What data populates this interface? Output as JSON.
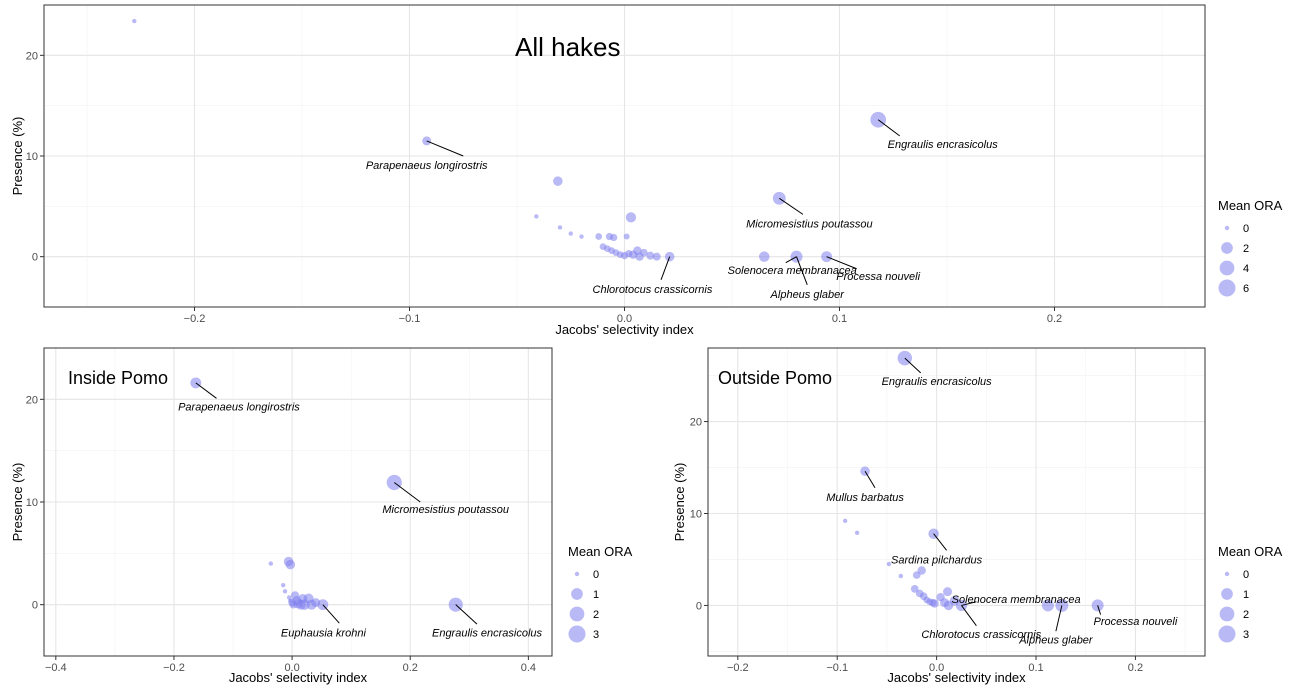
{
  "chart_data": [
    {
      "type": "scatter",
      "title": "All hakes",
      "xlabel": "Jacobs' selectivity index",
      "ylabel": "Presence (%)",
      "xlim": [
        -0.27,
        0.27
      ],
      "ylim": [
        -5,
        25
      ],
      "x_ticks": [
        -0.2,
        -0.1,
        0.0,
        0.1,
        0.2
      ],
      "x_tick_labels": [
        "−0.2",
        "−0.1",
        "0.0",
        "0.1",
        "0.2"
      ],
      "y_ticks": [
        0,
        10,
        20
      ],
      "y_tick_labels": [
        "0",
        "10",
        "20"
      ],
      "grid": true,
      "point_color": "#8080ee",
      "legend": {
        "title": "Mean ORA",
        "placement": "right",
        "values": [
          0,
          2,
          4,
          6
        ],
        "labels": [
          "0",
          "2",
          "4",
          "6"
        ],
        "max": 6
      },
      "points": [
        {
          "x": -0.228,
          "y": 23.4,
          "ora": 0
        },
        {
          "x": -0.092,
          "y": 11.5,
          "ora": 0.8
        },
        {
          "x": -0.031,
          "y": 7.5,
          "ora": 1.0
        },
        {
          "x": 0.003,
          "y": 3.9,
          "ora": 1.3
        },
        {
          "x": 0.118,
          "y": 13.6,
          "ora": 4.8
        },
        {
          "x": 0.072,
          "y": 5.8,
          "ora": 2.7
        },
        {
          "x": -0.041,
          "y": 4.0,
          "ora": 0
        },
        {
          "x": -0.03,
          "y": 2.9,
          "ora": 0
        },
        {
          "x": -0.025,
          "y": 2.3,
          "ora": 0
        },
        {
          "x": -0.02,
          "y": 2.0,
          "ora": 0
        },
        {
          "x": -0.012,
          "y": 2.0,
          "ora": 0.2
        },
        {
          "x": -0.007,
          "y": 2.0,
          "ora": 0.3
        },
        {
          "x": -0.005,
          "y": 1.9,
          "ora": 0.3
        },
        {
          "x": 0.001,
          "y": 2.0,
          "ora": 0.1
        },
        {
          "x": -0.01,
          "y": 1.0,
          "ora": 0.2
        },
        {
          "x": -0.008,
          "y": 0.8,
          "ora": 0.2
        },
        {
          "x": -0.006,
          "y": 0.6,
          "ora": 0.2
        },
        {
          "x": -0.004,
          "y": 0.4,
          "ora": 0.2
        },
        {
          "x": -0.002,
          "y": 0.2,
          "ora": 0.2
        },
        {
          "x": 0.0,
          "y": 0.1,
          "ora": 0.3
        },
        {
          "x": 0.002,
          "y": 0.3,
          "ora": 0.3
        },
        {
          "x": 0.004,
          "y": 0.2,
          "ora": 0.6
        },
        {
          "x": 0.006,
          "y": 0.6,
          "ora": 0.6
        },
        {
          "x": 0.007,
          "y": 0.0,
          "ora": 0.6
        },
        {
          "x": 0.009,
          "y": 0.4,
          "ora": 0.4
        },
        {
          "x": 0.012,
          "y": 0.1,
          "ora": 0.5
        },
        {
          "x": 0.015,
          "y": 0.0,
          "ora": 0.5
        },
        {
          "x": 0.021,
          "y": 0.0,
          "ora": 1.0
        },
        {
          "x": 0.065,
          "y": 0.0,
          "ora": 1.4
        },
        {
          "x": 0.08,
          "y": 0.0,
          "ora": 2.2
        },
        {
          "x": 0.094,
          "y": 0.0,
          "ora": 1.6
        }
      ],
      "annotations": [
        {
          "label": "Parapenaeus longirostris",
          "x": -0.092,
          "y": 11.5,
          "tx": -0.092,
          "ty": 9.1,
          "lx": -0.075,
          "ly": 10.0
        },
        {
          "label": "Engraulis encrasicolus",
          "x": 0.118,
          "y": 13.6,
          "tx": 0.148,
          "ty": 11.2,
          "lx": 0.128,
          "ly": 12.0
        },
        {
          "label": "Micromesistius poutassou",
          "x": 0.072,
          "y": 5.8,
          "tx": 0.086,
          "ty": 3.3,
          "lx": 0.083,
          "ly": 4.2
        },
        {
          "label": "Solenocera membranacea",
          "x": 0.08,
          "y": 0.0,
          "tx": 0.078,
          "ty": -1.3,
          "lx": 0.075,
          "ly": -0.6
        },
        {
          "label": "Processa nouveli",
          "x": 0.094,
          "y": 0.0,
          "tx": 0.118,
          "ty": -1.9,
          "lx": 0.108,
          "ly": -1.2
        },
        {
          "label": "Alpheus glaber",
          "x": 0.08,
          "y": 0.0,
          "tx": 0.085,
          "ty": -3.7,
          "lx": 0.085,
          "ly": -2.8
        },
        {
          "label": "Chlorotocus crassicornis",
          "x": 0.021,
          "y": 0.0,
          "tx": 0.013,
          "ty": -3.2,
          "lx": 0.017,
          "ly": -2.3
        }
      ]
    },
    {
      "type": "scatter",
      "title": "Inside Pomo",
      "xlabel": "Jacobs' selectivity index",
      "ylabel": "Presence (%)",
      "xlim": [
        -0.42,
        0.44
      ],
      "ylim": [
        -5,
        25
      ],
      "x_ticks": [
        -0.4,
        -0.2,
        0.0,
        0.2,
        0.4
      ],
      "x_tick_labels": [
        "−0.4",
        "−0.2",
        "0.0",
        "0.2",
        "0.4"
      ],
      "y_ticks": [
        0,
        10,
        20
      ],
      "y_tick_labels": [
        "0",
        "10",
        "20"
      ],
      "grid": true,
      "point_color": "#8080ee",
      "legend": {
        "title": "Mean ORA",
        "placement": "right",
        "values": [
          0,
          1,
          2,
          3
        ],
        "labels": [
          "0",
          "1",
          "2",
          "3"
        ],
        "max": 3
      },
      "points": [
        {
          "x": -0.163,
          "y": 21.6,
          "ora": 0.8
        },
        {
          "x": 0.173,
          "y": 11.9,
          "ora": 2.2
        },
        {
          "x": 0.277,
          "y": 0.0,
          "ora": 1.8
        },
        {
          "x": 0.052,
          "y": 0.0,
          "ora": 0.8
        },
        {
          "x": -0.036,
          "y": 4.0,
          "ora": 0
        },
        {
          "x": -0.006,
          "y": 4.2,
          "ora": 0.5
        },
        {
          "x": -0.003,
          "y": 3.9,
          "ora": 0.5
        },
        {
          "x": -0.015,
          "y": 1.9,
          "ora": 0
        },
        {
          "x": -0.012,
          "y": 1.3,
          "ora": 0
        },
        {
          "x": -0.005,
          "y": 0.7,
          "ora": 0
        },
        {
          "x": -0.003,
          "y": 0.4,
          "ora": 0
        },
        {
          "x": 0.0,
          "y": 0.2,
          "ora": 0.2
        },
        {
          "x": 0.002,
          "y": 0.0,
          "ora": 0.2
        },
        {
          "x": 0.005,
          "y": 0.9,
          "ora": 0.3
        },
        {
          "x": 0.008,
          "y": 0.4,
          "ora": 0.4
        },
        {
          "x": 0.01,
          "y": 0.1,
          "ora": 0.5
        },
        {
          "x": 0.015,
          "y": 0.0,
          "ora": 0.6
        },
        {
          "x": 0.018,
          "y": 0.6,
          "ora": 0.4
        },
        {
          "x": 0.021,
          "y": 0.0,
          "ora": 0.7
        },
        {
          "x": 0.028,
          "y": 0.6,
          "ora": 0.6
        },
        {
          "x": 0.033,
          "y": 0.0,
          "ora": 0.6
        },
        {
          "x": 0.04,
          "y": 0.2,
          "ora": 0.4
        }
      ],
      "annotations": [
        {
          "label": "Parapenaeus longirostris",
          "x": -0.163,
          "y": 21.6,
          "tx": -0.09,
          "ty": 19.3,
          "lx": -0.128,
          "ly": 20.1
        },
        {
          "label": "Micromesistius poutassou",
          "x": 0.173,
          "y": 11.9,
          "tx": 0.26,
          "ty": 9.3,
          "lx": 0.217,
          "ly": 10.0
        },
        {
          "label": "Engraulis encrasicolus",
          "x": 0.277,
          "y": 0.0,
          "tx": 0.33,
          "ty": -2.7,
          "lx": 0.313,
          "ly": -1.9
        },
        {
          "label": "Euphausia krohni",
          "x": 0.052,
          "y": 0.0,
          "tx": 0.053,
          "ty": -2.7,
          "lx": 0.08,
          "ly": -1.8
        }
      ]
    },
    {
      "type": "scatter",
      "title": "Outside Pomo",
      "xlabel": "Jacobs' selectivity index",
      "ylabel": "Presence (%)",
      "xlim": [
        -0.23,
        0.27
      ],
      "ylim": [
        -5.5,
        28
      ],
      "x_ticks": [
        -0.2,
        -0.1,
        0.0,
        0.1,
        0.2
      ],
      "x_tick_labels": [
        "−0.2",
        "−0.1",
        "0.0",
        "0.1",
        "0.2"
      ],
      "y_ticks": [
        0,
        10,
        20
      ],
      "y_tick_labels": [
        "0",
        "10",
        "20"
      ],
      "grid": true,
      "point_color": "#8080ee",
      "legend": {
        "title": "Mean ORA",
        "placement": "right",
        "values": [
          0,
          1,
          2,
          3
        ],
        "labels": [
          "0",
          "1",
          "2",
          "3"
        ],
        "max": 3
      },
      "points": [
        {
          "x": -0.032,
          "y": 26.9,
          "ora": 1.9
        },
        {
          "x": -0.072,
          "y": 14.6,
          "ora": 0.5
        },
        {
          "x": -0.003,
          "y": 7.8,
          "ora": 0.7
        },
        {
          "x": -0.092,
          "y": 9.2,
          "ora": 0
        },
        {
          "x": -0.08,
          "y": 7.9,
          "ora": 0
        },
        {
          "x": -0.048,
          "y": 4.5,
          "ora": 0
        },
        {
          "x": -0.036,
          "y": 3.2,
          "ora": 0
        },
        {
          "x": -0.02,
          "y": 3.3,
          "ora": 0.2
        },
        {
          "x": -0.015,
          "y": 3.8,
          "ora": 0.3
        },
        {
          "x": -0.022,
          "y": 1.8,
          "ora": 0.2
        },
        {
          "x": -0.017,
          "y": 1.3,
          "ora": 0.2
        },
        {
          "x": -0.013,
          "y": 1.0,
          "ora": 0.2
        },
        {
          "x": -0.01,
          "y": 0.6,
          "ora": 0.1
        },
        {
          "x": -0.007,
          "y": 0.4,
          "ora": 0.1
        },
        {
          "x": -0.004,
          "y": 0.3,
          "ora": 0.2
        },
        {
          "x": -0.002,
          "y": 0.2,
          "ora": 0.3
        },
        {
          "x": 0.004,
          "y": 0.9,
          "ora": 0.3
        },
        {
          "x": 0.008,
          "y": 0.3,
          "ora": 0.4
        },
        {
          "x": 0.012,
          "y": 0.0,
          "ora": 0.5
        },
        {
          "x": 0.011,
          "y": 1.5,
          "ora": 0.4
        },
        {
          "x": 0.018,
          "y": 0.5,
          "ora": 0.5
        },
        {
          "x": 0.025,
          "y": 0.0,
          "ora": 0.9
        },
        {
          "x": 0.112,
          "y": 0.0,
          "ora": 1.1
        },
        {
          "x": 0.126,
          "y": 0.0,
          "ora": 1.4
        },
        {
          "x": 0.162,
          "y": 0.0,
          "ora": 1.1
        }
      ],
      "annotations": [
        {
          "label": "Engraulis encrasicolus",
          "x": -0.032,
          "y": 26.9,
          "tx": 0.0,
          "ty": 24.4,
          "lx": -0.016,
          "ly": 25.3
        },
        {
          "label": "Mullus barbatus",
          "x": -0.072,
          "y": 14.6,
          "tx": -0.072,
          "ty": 11.8,
          "lx": -0.062,
          "ly": 12.8
        },
        {
          "label": "Sardina pilchardus",
          "x": -0.003,
          "y": 7.8,
          "tx": 0.0,
          "ty": 5.0,
          "lx": 0.01,
          "ly": 6.0
        },
        {
          "label": "Solenocera membranacea",
          "x": 0.025,
          "y": 0.0,
          "tx": 0.08,
          "ty": 0.7,
          "lx": 0.04,
          "ly": 0.4
        },
        {
          "label": "Processa nouveli",
          "x": 0.162,
          "y": 0.0,
          "tx": 0.2,
          "ty": -1.7,
          "lx": 0.165,
          "ly": -1.0
        },
        {
          "label": "Alpheus glaber",
          "x": 0.126,
          "y": 0.0,
          "tx": 0.12,
          "ty": -3.7,
          "lx": 0.12,
          "ly": -2.8
        },
        {
          "label": "Chlorotocus crassicornis",
          "x": 0.025,
          "y": 0.0,
          "tx": 0.045,
          "ty": -3.1,
          "lx": 0.04,
          "ly": -2.2
        }
      ]
    }
  ]
}
